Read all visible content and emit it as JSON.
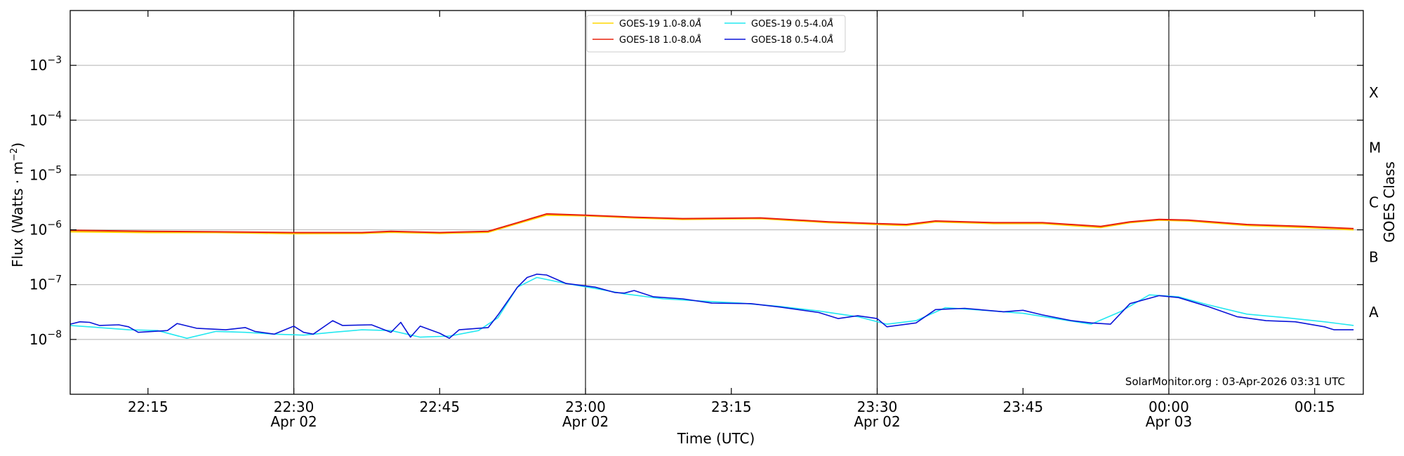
{
  "chart_data": {
    "type": "line",
    "ylabel_main": "Flux (Watts · m",
    "ylabel_exp": "−2",
    "ylabel_close": ")",
    "xlabel": "Time (UTC)",
    "right_label": "GOES Class",
    "credit": "SolarMonitor.org : 03-Apr-2026 03:31 UTC",
    "y_scale": "log",
    "ylim": [
      1e-09,
      0.01
    ],
    "xlim": [
      "22:07",
      "00:20"
    ],
    "grid": "horizontal",
    "legend_placement": "top-center",
    "y_ticks": [
      {
        "value": 1e-08,
        "base": "10",
        "exp": "−8"
      },
      {
        "value": 1e-07,
        "base": "10",
        "exp": "−7"
      },
      {
        "value": 1e-06,
        "base": "10",
        "exp": "−6"
      },
      {
        "value": 1e-05,
        "base": "10",
        "exp": "−5"
      },
      {
        "value": 0.0001,
        "base": "10",
        "exp": "−4"
      },
      {
        "value": 0.001,
        "base": "10",
        "exp": "−3"
      }
    ],
    "x_ticks": [
      {
        "time": "22:15",
        "label": "22:15",
        "sub": ""
      },
      {
        "time": "22:30",
        "label": "22:30",
        "sub": "Apr 02"
      },
      {
        "time": "22:45",
        "label": "22:45",
        "sub": ""
      },
      {
        "time": "23:00",
        "label": "23:00",
        "sub": "Apr 02"
      },
      {
        "time": "23:15",
        "label": "23:15",
        "sub": ""
      },
      {
        "time": "23:30",
        "label": "23:30",
        "sub": "Apr 02"
      },
      {
        "time": "23:45",
        "label": "23:45",
        "sub": ""
      },
      {
        "time": "00:00",
        "label": "00:00",
        "sub": "Apr 03"
      },
      {
        "time": "00:15",
        "label": "00:15",
        "sub": ""
      }
    ],
    "vlines": [
      "22:30",
      "23:00",
      "23:30",
      "00:00"
    ],
    "goes_classes": [
      {
        "label": "A",
        "value": 3.16e-08
      },
      {
        "label": "B",
        "value": 3.16e-07
      },
      {
        "label": "C",
        "value": 3.16e-06
      },
      {
        "label": "M",
        "value": 3.16e-05
      },
      {
        "label": "X",
        "value": 0.000316
      }
    ],
    "series": [
      {
        "name": "GOES-19 1.0-8.0",
        "unit_symbol": "Å",
        "color": "#ffd700",
        "points": [
          [
            "22:07",
            9.2e-07
          ],
          [
            "22:15",
            8.9e-07
          ],
          [
            "22:22",
            8.9e-07
          ],
          [
            "22:30",
            8.5e-07
          ],
          [
            "22:37",
            8.6e-07
          ],
          [
            "22:40",
            9e-07
          ],
          [
            "22:45",
            8.6e-07
          ],
          [
            "22:50",
            9e-07
          ],
          [
            "22:53",
            1.3e-06
          ],
          [
            "22:56",
            1.85e-06
          ],
          [
            "23:00",
            1.8e-06
          ],
          [
            "23:05",
            1.65e-06
          ],
          [
            "23:10",
            1.55e-06
          ],
          [
            "23:18",
            1.6e-06
          ],
          [
            "23:25",
            1.35e-06
          ],
          [
            "23:30",
            1.25e-06
          ],
          [
            "23:33",
            1.2e-06
          ],
          [
            "23:36",
            1.4e-06
          ],
          [
            "23:42",
            1.3e-06
          ],
          [
            "23:47",
            1.3e-06
          ],
          [
            "23:53",
            1.1e-06
          ],
          [
            "23:56",
            1.35e-06
          ],
          [
            "23:59",
            1.5e-06
          ],
          [
            "00:02",
            1.45e-06
          ],
          [
            "00:08",
            1.2e-06
          ],
          [
            "00:14",
            1.1e-06
          ],
          [
            "00:19",
            1e-06
          ]
        ]
      },
      {
        "name": "GOES-18 1.0-8.0",
        "unit_symbol": "Å",
        "color": "#e8200c",
        "points": [
          [
            "22:07",
            9.8e-07
          ],
          [
            "22:15",
            9.4e-07
          ],
          [
            "22:22",
            9.2e-07
          ],
          [
            "22:30",
            8.9e-07
          ],
          [
            "22:37",
            8.9e-07
          ],
          [
            "22:40",
            9.4e-07
          ],
          [
            "22:45",
            8.9e-07
          ],
          [
            "22:50",
            9.4e-07
          ],
          [
            "22:53",
            1.35e-06
          ],
          [
            "22:56",
            1.95e-06
          ],
          [
            "23:00",
            1.85e-06
          ],
          [
            "23:05",
            1.7e-06
          ],
          [
            "23:10",
            1.6e-06
          ],
          [
            "23:18",
            1.65e-06
          ],
          [
            "23:25",
            1.4e-06
          ],
          [
            "23:30",
            1.3e-06
          ],
          [
            "23:33",
            1.25e-06
          ],
          [
            "23:36",
            1.45e-06
          ],
          [
            "23:42",
            1.35e-06
          ],
          [
            "23:47",
            1.35e-06
          ],
          [
            "23:53",
            1.15e-06
          ],
          [
            "23:56",
            1.4e-06
          ],
          [
            "23:59",
            1.55e-06
          ],
          [
            "00:02",
            1.5e-06
          ],
          [
            "00:08",
            1.25e-06
          ],
          [
            "00:14",
            1.15e-06
          ],
          [
            "00:19",
            1.05e-06
          ]
        ]
      },
      {
        "name": "GOES-19 0.5-4.0",
        "unit_symbol": "Å",
        "color": "#22e8f0",
        "points": [
          [
            "22:07",
            1.8e-08
          ],
          [
            "22:10",
            1.65e-08
          ],
          [
            "22:13",
            1.5e-08
          ],
          [
            "22:16",
            1.45e-08
          ],
          [
            "22:19",
            1.05e-08
          ],
          [
            "22:22",
            1.4e-08
          ],
          [
            "22:25",
            1.35e-08
          ],
          [
            "22:28",
            1.25e-08
          ],
          [
            "22:31",
            1.2e-08
          ],
          [
            "22:34",
            1.35e-08
          ],
          [
            "22:37",
            1.5e-08
          ],
          [
            "22:40",
            1.45e-08
          ],
          [
            "22:43",
            1.1e-08
          ],
          [
            "22:46",
            1.15e-08
          ],
          [
            "22:49",
            1.45e-08
          ],
          [
            "22:51",
            2.5e-08
          ],
          [
            "22:53",
            9e-08
          ],
          [
            "22:55",
            1.35e-07
          ],
          [
            "22:58",
            1.05e-07
          ],
          [
            "23:01",
            8.5e-08
          ],
          [
            "23:04",
            6.8e-08
          ],
          [
            "23:08",
            5.5e-08
          ],
          [
            "23:12",
            5e-08
          ],
          [
            "23:16",
            4.6e-08
          ],
          [
            "23:20",
            4e-08
          ],
          [
            "23:24",
            3.3e-08
          ],
          [
            "23:28",
            2.6e-08
          ],
          [
            "23:31",
            1.9e-08
          ],
          [
            "23:34",
            2.2e-08
          ],
          [
            "23:37",
            3.8e-08
          ],
          [
            "23:41",
            3.4e-08
          ],
          [
            "23:45",
            3e-08
          ],
          [
            "23:49",
            2.3e-08
          ],
          [
            "23:52",
            1.9e-08
          ],
          [
            "23:55",
            3.2e-08
          ],
          [
            "23:58",
            6.5e-08
          ],
          [
            "00:01",
            6e-08
          ],
          [
            "00:04",
            4.3e-08
          ],
          [
            "00:08",
            2.9e-08
          ],
          [
            "00:12",
            2.5e-08
          ],
          [
            "00:16",
            2.1e-08
          ],
          [
            "00:19",
            1.8e-08
          ]
        ]
      },
      {
        "name": "GOES-18 0.5-4.0",
        "unit_symbol": "Å",
        "color": "#0a14d8",
        "points": [
          [
            "22:07",
            1.9e-08
          ],
          [
            "22:08",
            2.1e-08
          ],
          [
            "22:09",
            2.05e-08
          ],
          [
            "22:10",
            1.8e-08
          ],
          [
            "22:12",
            1.85e-08
          ],
          [
            "22:13",
            1.7e-08
          ],
          [
            "22:14",
            1.35e-08
          ],
          [
            "22:17",
            1.45e-08
          ],
          [
            "22:18",
            1.95e-08
          ],
          [
            "22:20",
            1.6e-08
          ],
          [
            "22:23",
            1.5e-08
          ],
          [
            "22:25",
            1.65e-08
          ],
          [
            "22:26",
            1.4e-08
          ],
          [
            "22:28",
            1.25e-08
          ],
          [
            "22:30",
            1.75e-08
          ],
          [
            "22:31",
            1.35e-08
          ],
          [
            "22:32",
            1.25e-08
          ],
          [
            "22:34",
            2.2e-08
          ],
          [
            "22:35",
            1.8e-08
          ],
          [
            "22:38",
            1.85e-08
          ],
          [
            "22:40",
            1.35e-08
          ],
          [
            "22:41",
            2.05e-08
          ],
          [
            "22:42",
            1.1e-08
          ],
          [
            "22:43",
            1.75e-08
          ],
          [
            "22:45",
            1.3e-08
          ],
          [
            "22:46",
            1.05e-08
          ],
          [
            "22:47",
            1.5e-08
          ],
          [
            "22:50",
            1.65e-08
          ],
          [
            "22:51",
            2.8e-08
          ],
          [
            "22:53",
            9e-08
          ],
          [
            "22:54",
            1.35e-07
          ],
          [
            "22:55",
            1.55e-07
          ],
          [
            "22:56",
            1.5e-07
          ],
          [
            "22:58",
            1.05e-07
          ],
          [
            "23:01",
            9e-08
          ],
          [
            "23:03",
            7.2e-08
          ],
          [
            "23:04",
            7e-08
          ],
          [
            "23:05",
            7.8e-08
          ],
          [
            "23:07",
            6e-08
          ],
          [
            "23:10",
            5.5e-08
          ],
          [
            "23:13",
            4.6e-08
          ],
          [
            "23:17",
            4.5e-08
          ],
          [
            "23:20",
            3.9e-08
          ],
          [
            "23:24",
            3.1e-08
          ],
          [
            "23:26",
            2.4e-08
          ],
          [
            "23:28",
            2.7e-08
          ],
          [
            "23:30",
            2.4e-08
          ],
          [
            "23:31",
            1.7e-08
          ],
          [
            "23:34",
            2e-08
          ],
          [
            "23:36",
            3.5e-08
          ],
          [
            "23:39",
            3.7e-08
          ],
          [
            "23:43",
            3.2e-08
          ],
          [
            "23:45",
            3.4e-08
          ],
          [
            "23:47",
            2.8e-08
          ],
          [
            "23:50",
            2.2e-08
          ],
          [
            "23:52",
            2e-08
          ],
          [
            "23:54",
            1.9e-08
          ],
          [
            "23:56",
            4.5e-08
          ],
          [
            "23:59",
            6.3e-08
          ],
          [
            "00:01",
            5.8e-08
          ],
          [
            "00:04",
            4e-08
          ],
          [
            "00:07",
            2.6e-08
          ],
          [
            "00:10",
            2.2e-08
          ],
          [
            "00:13",
            2.1e-08
          ],
          [
            "00:16",
            1.7e-08
          ],
          [
            "00:17",
            1.5e-08
          ],
          [
            "00:19",
            1.5e-08
          ]
        ]
      }
    ]
  }
}
